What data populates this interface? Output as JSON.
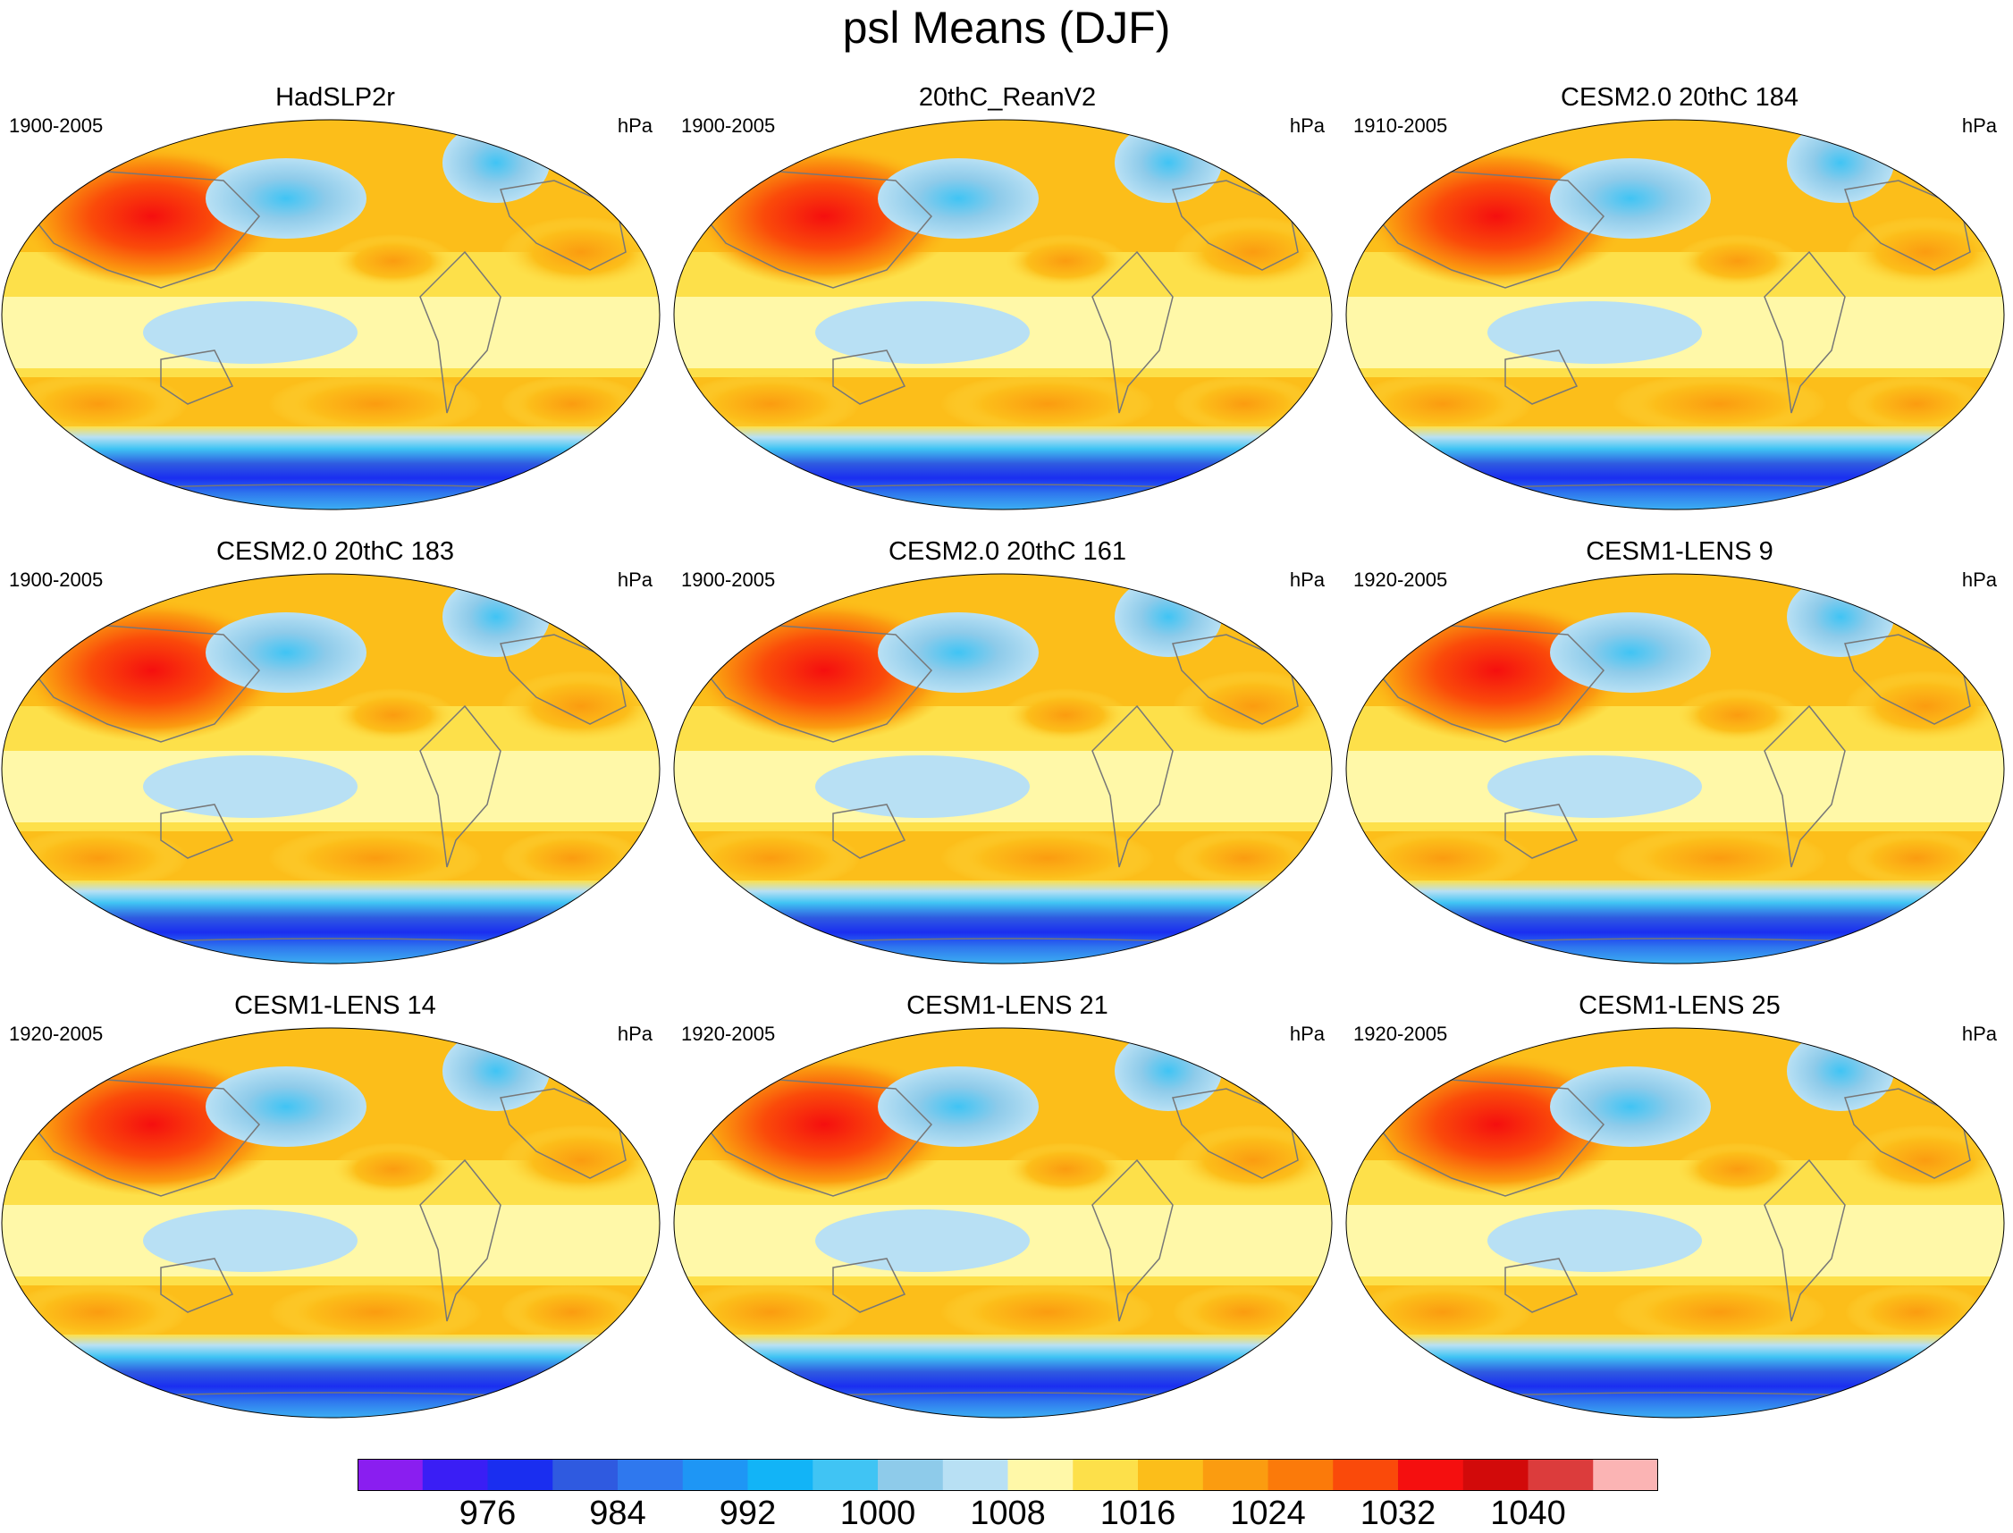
{
  "title": "psl Means (DJF)",
  "panels": [
    {
      "title": "HadSLP2r",
      "years": "1900-2005",
      "units": "hPa"
    },
    {
      "title": "20thC_ReanV2",
      "years": "1900-2005",
      "units": "hPa"
    },
    {
      "title": "CESM2.0 20thC 184",
      "years": "1910-2005",
      "units": "hPa"
    },
    {
      "title": "CESM2.0 20thC 183",
      "years": "1900-2005",
      "units": "hPa"
    },
    {
      "title": "CESM2.0 20thC 161",
      "years": "1900-2005",
      "units": "hPa"
    },
    {
      "title": "CESM1-LENS 9",
      "years": "1920-2005",
      "units": "hPa"
    },
    {
      "title": "CESM1-LENS 14",
      "years": "1920-2005",
      "units": "hPa"
    },
    {
      "title": "CESM1-LENS 21",
      "years": "1920-2005",
      "units": "hPa"
    },
    {
      "title": "CESM1-LENS 25",
      "years": "1920-2005",
      "units": "hPa"
    }
  ],
  "colorbar": {
    "labels": [
      "976",
      "984",
      "992",
      "1000",
      "1008",
      "1016",
      "1024",
      "1032",
      "1040"
    ],
    "colors": [
      "#8a1ef0",
      "#3a1ef5",
      "#1a2ef0",
      "#2f5ae0",
      "#2f78ee",
      "#1e96f5",
      "#12b4f7",
      "#40c4f4",
      "#8ecbea",
      "#b8e0f4",
      "#fff8a8",
      "#fde04a",
      "#fcbe1a",
      "#fb9c10",
      "#fb7a0a",
      "#fa4a0a",
      "#f50f0f",
      "#d20a0a",
      "#dc3c3c",
      "#fbb4b4"
    ]
  }
}
